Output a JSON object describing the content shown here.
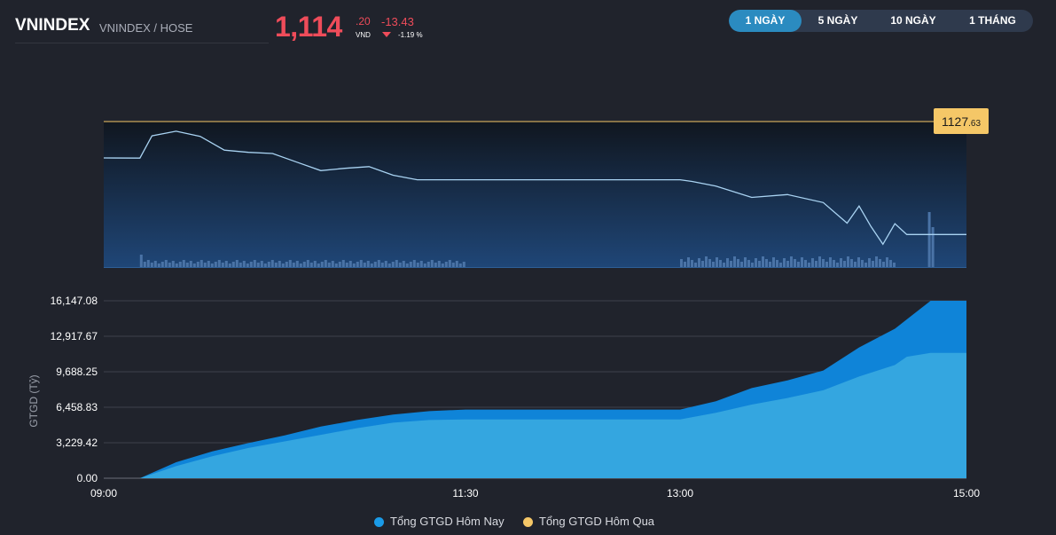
{
  "header": {
    "symbol": "VNINDEX",
    "exchange": "VNINDEX / HOSE",
    "price_int": "1,114",
    "price_dec": ".20",
    "currency": "VND",
    "change": "-13.43",
    "change_pct": "-1.19 %",
    "down_color": "#ef4c5a"
  },
  "tabs": [
    {
      "label": "1 NGÀY",
      "active": true
    },
    {
      "label": "5 NGÀY",
      "active": false
    },
    {
      "label": "10 NGÀY",
      "active": false
    },
    {
      "label": "1 THÁNG",
      "active": false
    }
  ],
  "reference": {
    "label_int": "1127",
    "label_dec": ".63",
    "value": 1127.63,
    "color": "#f5c767"
  },
  "chart_data": [
    {
      "type": "line",
      "x": [
        "09:15",
        "09:20",
        "09:30",
        "09:40",
        "09:50",
        "10:00",
        "10:10",
        "10:20",
        "10:30",
        "10:40",
        "10:50",
        "11:00",
        "11:10",
        "11:20",
        "11:30",
        "13:00",
        "13:05",
        "13:15",
        "13:30",
        "13:45",
        "14:00",
        "14:10",
        "14:15",
        "14:20",
        "14:25",
        "14:30",
        "14:35",
        "14:45"
      ],
      "values": [
        1127.6,
        1131.5,
        1132.3,
        1131.4,
        1129.0,
        1128.6,
        1128.4,
        1126.9,
        1125.4,
        1125.8,
        1126.1,
        1124.6,
        1123.8,
        1123.8,
        1123.8,
        1123.8,
        1123.5,
        1122.7,
        1120.7,
        1121.2,
        1119.8,
        1116.2,
        1119.2,
        1115.6,
        1112.5,
        1116.1,
        1114.2,
        1114.2
      ],
      "reference": 1127.63,
      "ylim": [
        1108.5,
        1134.0
      ],
      "volume_bars": "shown"
    },
    {
      "type": "area",
      "x": [
        "09:15",
        "09:30",
        "09:45",
        "10:00",
        "10:15",
        "10:30",
        "10:45",
        "11:00",
        "11:15",
        "11:30",
        "13:00",
        "13:15",
        "13:30",
        "13:45",
        "14:00",
        "14:15",
        "14:30",
        "14:35",
        "14:45",
        "15:00"
      ],
      "series": [
        {
          "name": "Tổng GTGD Hôm Nay",
          "values": [
            0,
            1450,
            2450,
            3200,
            3900,
            4700,
            5300,
            5800,
            6100,
            6250,
            6250,
            7000,
            8200,
            8900,
            9800,
            11900,
            13600,
            14450,
            16147,
            16147
          ]
        },
        {
          "name": "Tổng GTGD Hôm Qua",
          "values": [
            0,
            1100,
            2000,
            2750,
            3350,
            3950,
            4550,
            5050,
            5300,
            5350,
            5350,
            5950,
            6700,
            7300,
            8000,
            9250,
            10300,
            11050,
            11400,
            11400
          ]
        }
      ],
      "ylabel": "GTGD (Tỷ)",
      "yticks": [
        "0.00",
        "3,229.42",
        "6,458.83",
        "9,688.25",
        "12,917.67",
        "16,147.08"
      ],
      "xticks": [
        "09:00",
        "11:30",
        "13:00",
        "15:00"
      ],
      "ylim": [
        0,
        16147.08
      ],
      "colors": {
        "today": "#0f84d8",
        "yesterday": "#34a6e0"
      }
    }
  ],
  "legend": [
    {
      "label": "Tổng GTGD Hôm Nay",
      "color": "#1a9be8"
    },
    {
      "label": "Tổng GTGD Hôm Qua",
      "color": "#f5c767"
    }
  ]
}
